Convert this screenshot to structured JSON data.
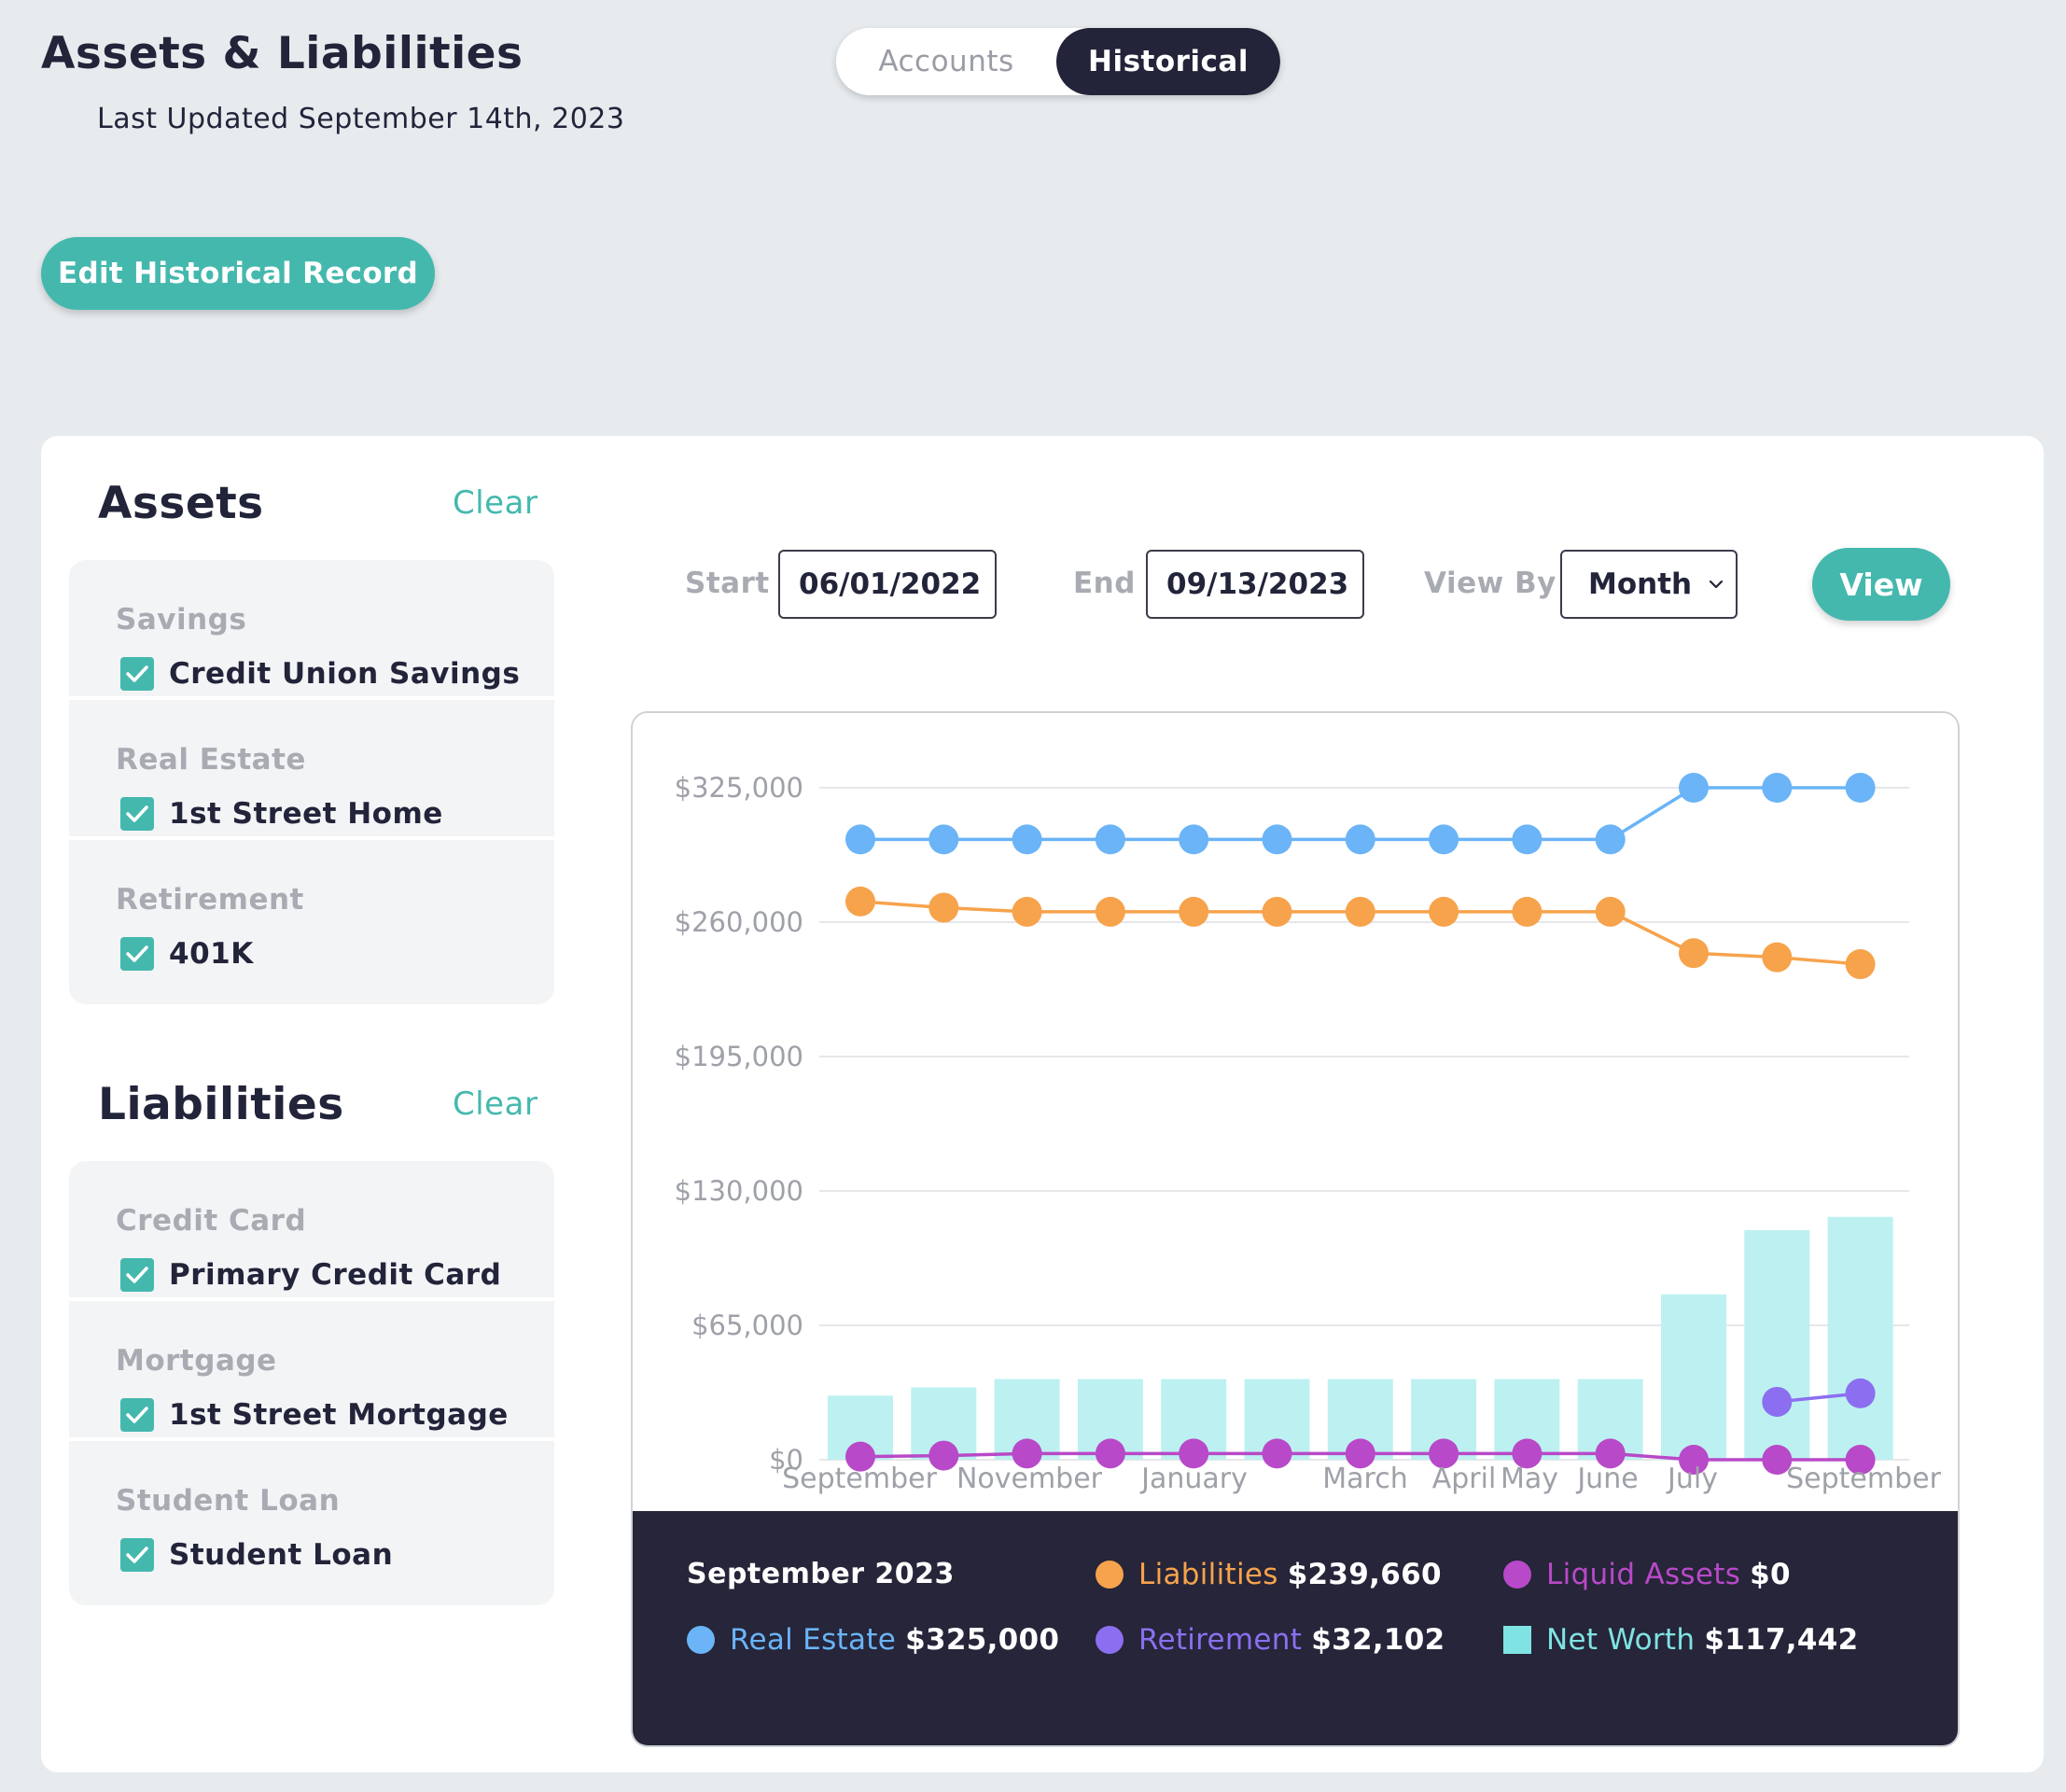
{
  "header": {
    "title": "Assets & Liabilities",
    "last_updated": "Last Updated September 14th, 2023",
    "edit_button": "Edit Historical Record"
  },
  "toggle": {
    "accounts_label": "Accounts",
    "historical_label": "Historical",
    "selected": "Historical"
  },
  "assets": {
    "title": "Assets",
    "clear_label": "Clear",
    "groups": [
      {
        "label": "Savings",
        "item": "Credit Union Savings",
        "checked": true
      },
      {
        "label": "Real Estate",
        "item": "1st Street Home",
        "checked": true
      },
      {
        "label": "Retirement",
        "item": "401K",
        "checked": true
      }
    ]
  },
  "liabilities": {
    "title": "Liabilities",
    "clear_label": "Clear",
    "groups": [
      {
        "label": "Credit Card",
        "item": "Primary Credit Card",
        "checked": true
      },
      {
        "label": "Mortgage",
        "item": "1st Street Mortgage",
        "checked": true
      },
      {
        "label": "Student Loan",
        "item": "Student Loan",
        "checked": true
      }
    ]
  },
  "filters": {
    "start_label": "Start",
    "start_value": "06/01/2022",
    "end_label": "End",
    "end_value": "09/13/2023",
    "view_by_label": "View By",
    "view_by_value": "Month",
    "view_button": "View"
  },
  "colors": {
    "accent": "#45b8ae",
    "real_estate": "#6ab4f7",
    "liabilities": "#f7a34c",
    "retirement": "#8b6ff0",
    "liquid_assets": "#b849c8",
    "net_worth": "#bdf1f1",
    "dark_panel": "#262539"
  },
  "chart_data": {
    "type": "line",
    "y_ticks": [
      "$325,000",
      "$260,000",
      "$195,000",
      "$130,000",
      "$65,000",
      "$0"
    ],
    "ylim": [
      0,
      325000
    ],
    "x_labels": [
      "September",
      "November",
      "January",
      "March",
      "April",
      "May",
      "June",
      "July",
      "September"
    ],
    "series": [
      {
        "name": "Real Estate",
        "color": "#6ab4f7",
        "kind": "line",
        "values": [
          300000,
          300000,
          300000,
          300000,
          300000,
          300000,
          300000,
          300000,
          300000,
          300000,
          325000,
          325000,
          325000
        ]
      },
      {
        "name": "Liabilities",
        "color": "#f7a34c",
        "kind": "line",
        "values": [
          270000,
          267000,
          265000,
          265000,
          265000,
          265000,
          265000,
          265000,
          265000,
          265000,
          245000,
          243000,
          239660
        ]
      },
      {
        "name": "Retirement",
        "color": "#8b6ff0",
        "kind": "line",
        "values": [
          null,
          null,
          null,
          null,
          null,
          null,
          null,
          null,
          null,
          null,
          null,
          28000,
          32102
        ]
      },
      {
        "name": "Liquid Assets",
        "color": "#b849c8",
        "kind": "line",
        "values": [
          1500,
          2000,
          3000,
          3000,
          3000,
          3000,
          3000,
          3000,
          3000,
          3000,
          0,
          0,
          0
        ]
      },
      {
        "name": "Net Worth",
        "color": "#bdf1f1",
        "kind": "bar",
        "values": [
          31000,
          35000,
          39000,
          39000,
          39000,
          39000,
          39000,
          39000,
          39000,
          39000,
          80000,
          111000,
          117442
        ]
      }
    ],
    "legend": {
      "period": "September 2023",
      "entries": [
        {
          "name": "Real Estate",
          "value": "$325,000"
        },
        {
          "name": "Liabilities",
          "value": "$239,660"
        },
        {
          "name": "Retirement",
          "value": "$32,102"
        },
        {
          "name": "Liquid Assets",
          "value": "$0"
        },
        {
          "name": "Net Worth",
          "value": "$117,442"
        }
      ]
    }
  }
}
